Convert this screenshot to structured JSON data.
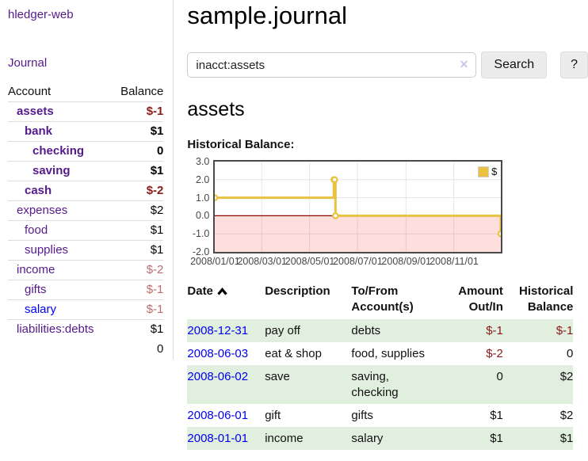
{
  "colors": {
    "link_purple": "#551A8B",
    "link_blue": "#0000EE",
    "negative": "#8B1A1A",
    "negative_soft": "#BB6B6B",
    "row_stripe_green": "#e1efde",
    "series_gold": "#E8C240"
  },
  "sidebar": {
    "app_title": "hledger-web",
    "nav": {
      "journal": "Journal"
    },
    "accounts_table": {
      "headers": {
        "account": "Account",
        "balance": "Balance"
      },
      "rows": [
        {
          "name": "assets",
          "balance": "$-1",
          "indent": 1,
          "bold": true,
          "link_color": "purple",
          "tone": "neg"
        },
        {
          "name": "bank",
          "balance": "$1",
          "indent": 2,
          "bold": true,
          "link_color": "purple",
          "tone": "pos"
        },
        {
          "name": "checking",
          "balance": "0",
          "indent": 3,
          "bold": true,
          "link_color": "purple",
          "tone": "pos"
        },
        {
          "name": "saving",
          "balance": "$1",
          "indent": 3,
          "bold": true,
          "link_color": "purple",
          "tone": "pos"
        },
        {
          "name": "cash",
          "balance": "$-2",
          "indent": 2,
          "bold": true,
          "link_color": "purple",
          "tone": "neg"
        },
        {
          "name": "expenses",
          "balance": "$2",
          "indent": 1,
          "bold": false,
          "link_color": "purple",
          "tone": "pos"
        },
        {
          "name": "food",
          "balance": "$1",
          "indent": 2,
          "bold": false,
          "link_color": "purple",
          "tone": "pos"
        },
        {
          "name": "supplies",
          "balance": "$1",
          "indent": 2,
          "bold": false,
          "link_color": "purple",
          "tone": "pos"
        },
        {
          "name": "income",
          "balance": "$-2",
          "indent": 1,
          "bold": false,
          "link_color": "purple",
          "tone": "negsoft"
        },
        {
          "name": "gifts",
          "balance": "$-1",
          "indent": 2,
          "bold": false,
          "link_color": "purple",
          "tone": "negsoft"
        },
        {
          "name": "salary",
          "balance": "$-1",
          "indent": 2,
          "bold": false,
          "link_color": "blue",
          "tone": "negsoft"
        },
        {
          "name": "liabilities:debts",
          "balance": "$1",
          "indent": 1,
          "bold": false,
          "link_color": "purple",
          "tone": "pos"
        }
      ],
      "total": "0"
    }
  },
  "main": {
    "title": "sample.journal",
    "search": {
      "value": "inacct:assets",
      "clear_icon": "✕",
      "button_label": "Search",
      "help_label": "?"
    },
    "account_heading": "assets",
    "chart_label": "Historical Balance:",
    "register_table": {
      "headers": {
        "date": "Date",
        "description": "Description",
        "accounts": "To/From Account(s)",
        "amount": "Amount Out/In",
        "balance": "Historical Balance"
      },
      "rows": [
        {
          "date": "2008-12-31",
          "description": "pay off",
          "accounts": "debts",
          "amount": "$-1",
          "amount_negative": true,
          "balance": "$-1",
          "balance_negative": true
        },
        {
          "date": "2008-06-03",
          "description": "eat & shop",
          "accounts": "food, supplies",
          "amount": "$-2",
          "amount_negative": true,
          "balance": "0",
          "balance_negative": false
        },
        {
          "date": "2008-06-02",
          "description": "save",
          "accounts": "saving, checking",
          "amount": "0",
          "amount_negative": false,
          "balance": "$2",
          "balance_negative": false
        },
        {
          "date": "2008-06-01",
          "description": "gift",
          "accounts": "gifts",
          "amount": "$1",
          "amount_negative": false,
          "balance": "$2",
          "balance_negative": false
        },
        {
          "date": "2008-01-01",
          "description": "income",
          "accounts": "salary",
          "amount": "$1",
          "amount_negative": false,
          "balance": "$1",
          "balance_negative": false
        }
      ]
    }
  },
  "chart_data": {
    "type": "line",
    "title": "Historical Balance",
    "step": true,
    "series": [
      {
        "name": "$",
        "color": "#E8C240",
        "points": [
          [
            "2008-01-01",
            1
          ],
          [
            "2008-06-01",
            2
          ],
          [
            "2008-06-02",
            2
          ],
          [
            "2008-06-03",
            0
          ],
          [
            "2008-12-31",
            -1
          ]
        ]
      }
    ],
    "x_range": [
      "2008-01-01",
      "2008-12-31"
    ],
    "ylim": [
      -2,
      3
    ],
    "yticks": [
      "3.0",
      "2.0",
      "1.0",
      "0.0",
      "-1.0",
      "-2.0"
    ],
    "xticks": [
      {
        "date": "2008-01-01",
        "label": "2008/01/01"
      },
      {
        "date": "2008-03-01",
        "label": "2008/03/01"
      },
      {
        "date": "2008-05-01",
        "label": "2008/05/01"
      },
      {
        "date": "2008-07-01",
        "label": "2008/07/01"
      },
      {
        "date": "2008-09-01",
        "label": "2008/09/01"
      },
      {
        "date": "2008-11-01",
        "label": "2008/11/01"
      }
    ],
    "grid": true,
    "zero_line_color": "#8B0000",
    "negative_region_color": "rgba(255,0,0,0.13)",
    "legend": {
      "label": "$",
      "position": "top-right"
    }
  }
}
